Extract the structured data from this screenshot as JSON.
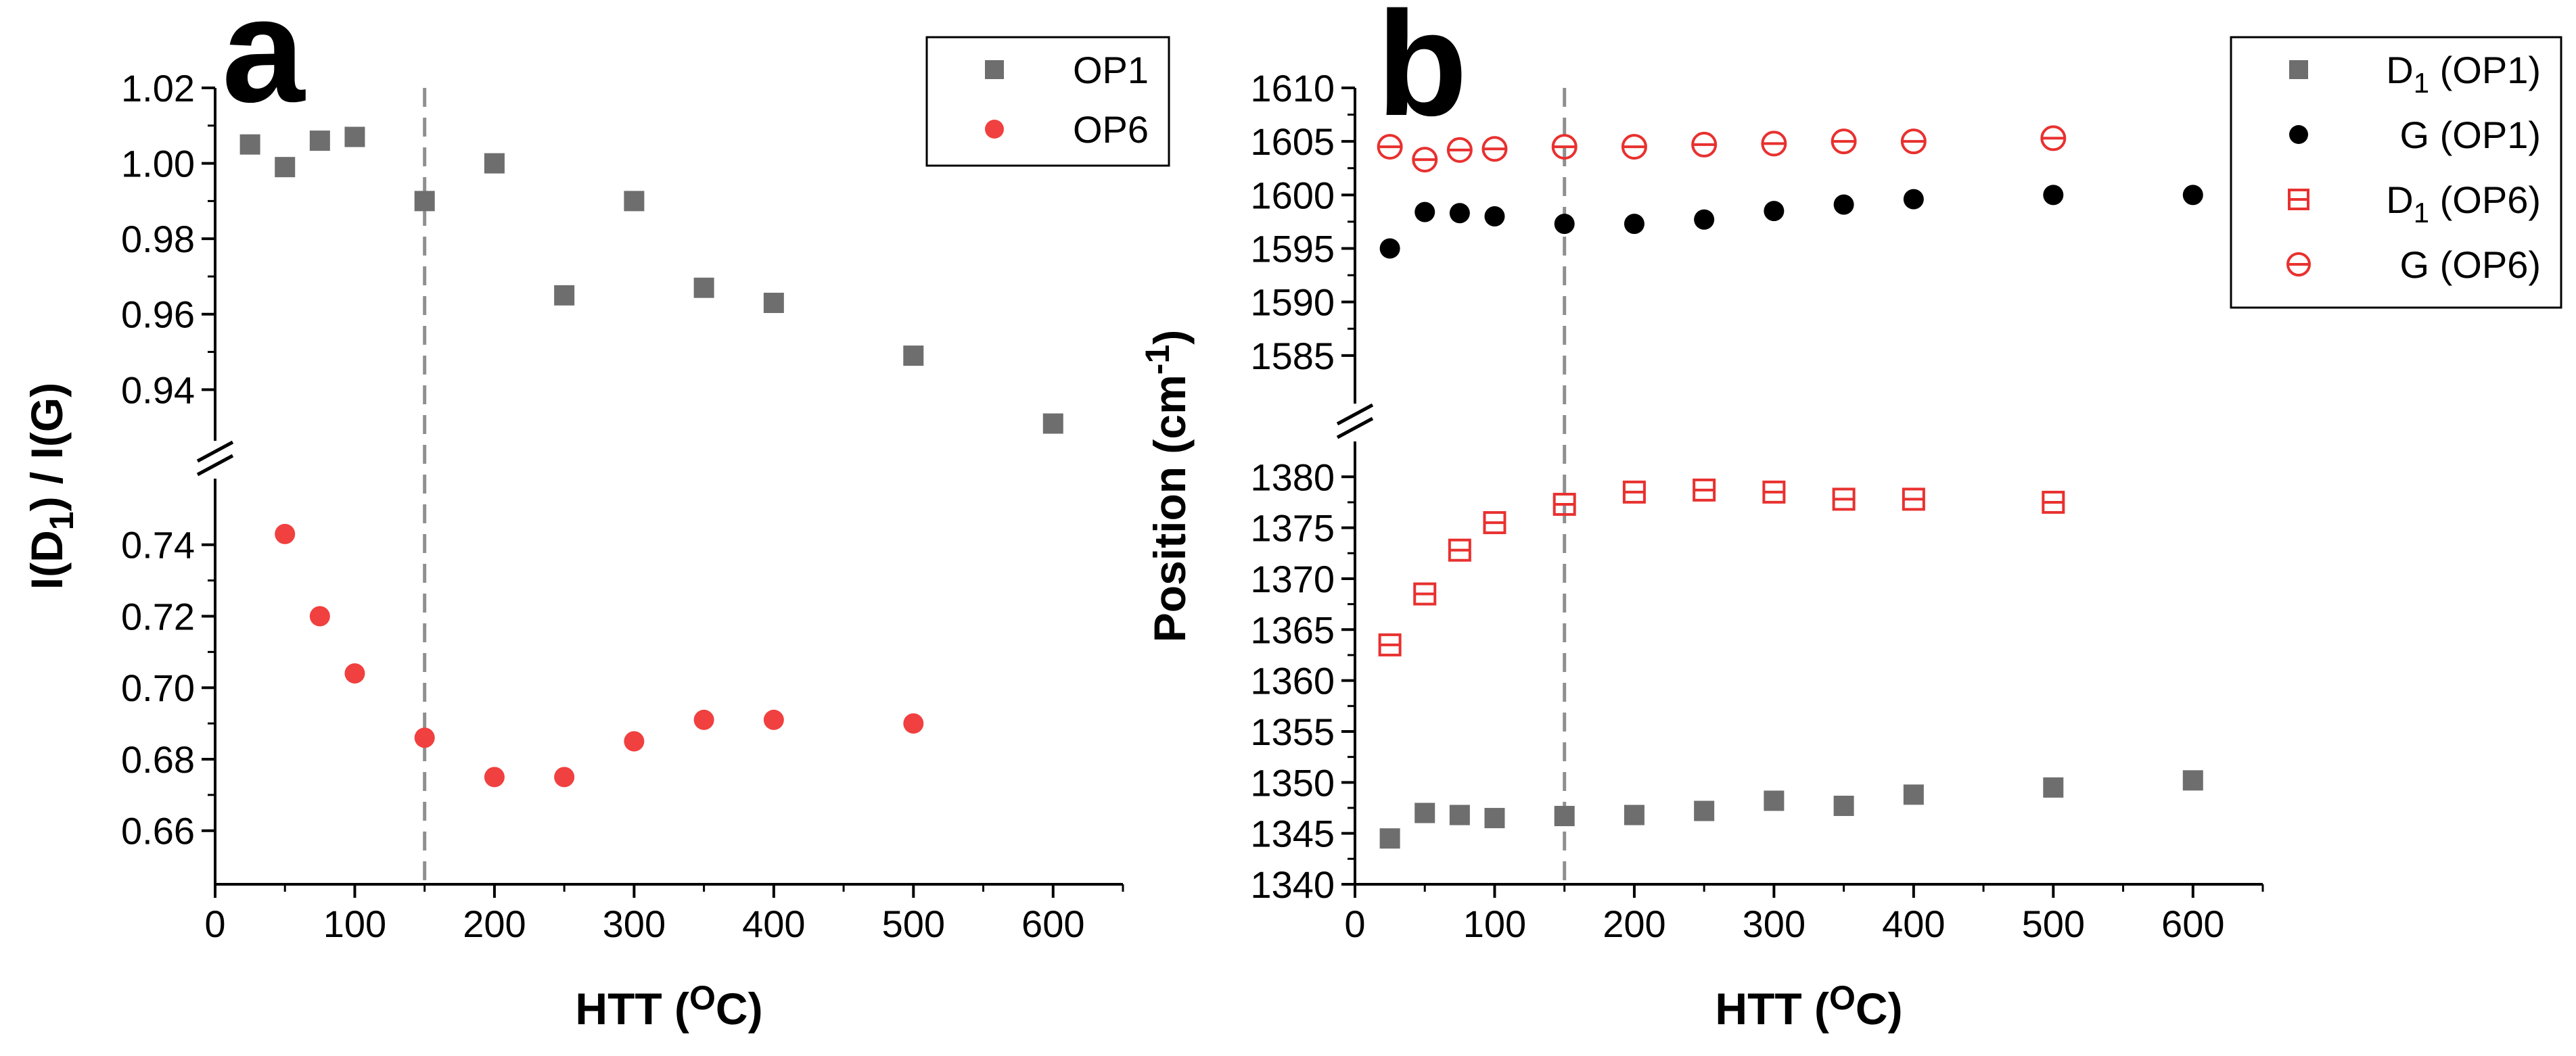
{
  "chart_data": [
    {
      "panel_label": "a",
      "type": "scatter",
      "xlabel": {
        "main": "HTT (",
        "sup": "O",
        "tail": "C)"
      },
      "ylabel": {
        "main": "I(D",
        "sub": "1",
        "tail": ") / I(G)"
      },
      "xlim": [
        0,
        650
      ],
      "xticks": [
        0,
        100,
        200,
        300,
        400,
        500,
        600
      ],
      "x_tick_labels": [
        "0",
        "100",
        "200",
        "300",
        "400",
        "500",
        "600"
      ],
      "upper_ylim": [
        0.925,
        1.02
      ],
      "upper_yticks": [
        0.94,
        0.96,
        0.98,
        1.0,
        1.02
      ],
      "upper_ytick_labels": [
        "0.94",
        "0.96",
        "0.98",
        "1.00",
        "1.02"
      ],
      "lower_ylim": [
        0.645,
        0.76
      ],
      "lower_yticks": [
        0.66,
        0.68,
        0.7,
        0.72,
        0.74
      ],
      "lower_ytick_labels": [
        "0.66",
        "0.68",
        "0.70",
        "0.72",
        "0.74"
      ],
      "vline_x": 150,
      "legend_position": "top-right",
      "series": [
        {
          "name": "OP1",
          "marker": "square",
          "color": "#6e6e6e",
          "segment": "upper",
          "x": [
            25,
            50,
            75,
            100,
            150,
            200,
            300,
            250,
            350,
            400,
            500,
            600
          ],
          "y": [
            1.005,
            0.999,
            1.006,
            1.007,
            0.99,
            1.0,
            0.99,
            0.965,
            0.967,
            0.963,
            0.949,
            0.931
          ]
        },
        {
          "name": "OP6",
          "marker": "circle",
          "color": "#f0403f",
          "segment": "lower",
          "x": [
            50,
            75,
            100,
            150,
            200,
            250,
            300,
            350,
            400,
            500
          ],
          "y": [
            0.743,
            0.72,
            0.704,
            0.686,
            0.675,
            0.675,
            0.685,
            0.691,
            0.691,
            0.69
          ]
        }
      ]
    },
    {
      "panel_label": "b",
      "type": "scatter",
      "xlabel": {
        "main": "HTT (",
        "sup": "O",
        "tail": "C)"
      },
      "ylabel": {
        "main": "Position (cm",
        "sup": "-1",
        "tail": ")"
      },
      "xlim": [
        0,
        650
      ],
      "xticks": [
        0,
        100,
        200,
        300,
        400,
        500,
        600
      ],
      "x_tick_labels": [
        "0",
        "100",
        "200",
        "300",
        "400",
        "500",
        "600"
      ],
      "upper_ylim": [
        1580,
        1610
      ],
      "upper_yticks": [
        1585,
        1590,
        1595,
        1600,
        1605,
        1610
      ],
      "upper_ytick_labels": [
        "1585",
        "1590",
        "1595",
        "1600",
        "1605",
        "1610"
      ],
      "lower_ylim": [
        1340,
        1384
      ],
      "lower_yticks": [
        1340,
        1345,
        1350,
        1355,
        1360,
        1365,
        1370,
        1375,
        1380
      ],
      "lower_ytick_labels": [
        "1340",
        "1345",
        "1350",
        "1355",
        "1360",
        "1365",
        "1370",
        "1375",
        "1380"
      ],
      "vline_x": 150,
      "legend_position": "top-right",
      "series": [
        {
          "name": "D",
          "name_sub": "1",
          "name_tail": " (OP1)",
          "marker": "square",
          "color": "#6e6e6e",
          "segment": "lower",
          "x": [
            25,
            50,
            75,
            100,
            150,
            200,
            250,
            300,
            350,
            400,
            500,
            600
          ],
          "y": [
            1344.5,
            1347.0,
            1346.8,
            1346.5,
            1346.7,
            1346.8,
            1347.2,
            1348.2,
            1347.7,
            1348.8,
            1349.5,
            1350.2
          ]
        },
        {
          "name": "G",
          "name_tail": " (OP1)",
          "marker": "circle",
          "color": "#000000",
          "segment": "upper",
          "x": [
            25,
            50,
            75,
            100,
            150,
            200,
            250,
            300,
            350,
            400,
            500,
            600
          ],
          "y": [
            1595.0,
            1598.4,
            1598.3,
            1598.0,
            1597.3,
            1597.3,
            1597.7,
            1598.5,
            1599.1,
            1599.6,
            1600.0,
            1600.0
          ]
        },
        {
          "name": "D",
          "name_sub": "1",
          "name_tail": " (OP6)",
          "marker": "open-square-hline",
          "color": "#e8312f",
          "segment": "lower",
          "x": [
            25,
            50,
            75,
            100,
            150,
            200,
            250,
            300,
            350,
            400,
            500
          ],
          "y": [
            1363.5,
            1368.5,
            1372.8,
            1375.5,
            1377.3,
            1378.5,
            1378.7,
            1378.5,
            1377.8,
            1377.8,
            1377.5
          ]
        },
        {
          "name": "G",
          "name_tail": " (OP6)",
          "marker": "open-circle-hline",
          "color": "#e8312f",
          "segment": "upper",
          "x": [
            25,
            50,
            75,
            100,
            150,
            200,
            250,
            300,
            350,
            400,
            500
          ],
          "y": [
            1604.5,
            1603.3,
            1604.2,
            1604.3,
            1604.5,
            1604.5,
            1604.7,
            1604.8,
            1605.0,
            1605.0,
            1605.3
          ]
        }
      ]
    }
  ]
}
